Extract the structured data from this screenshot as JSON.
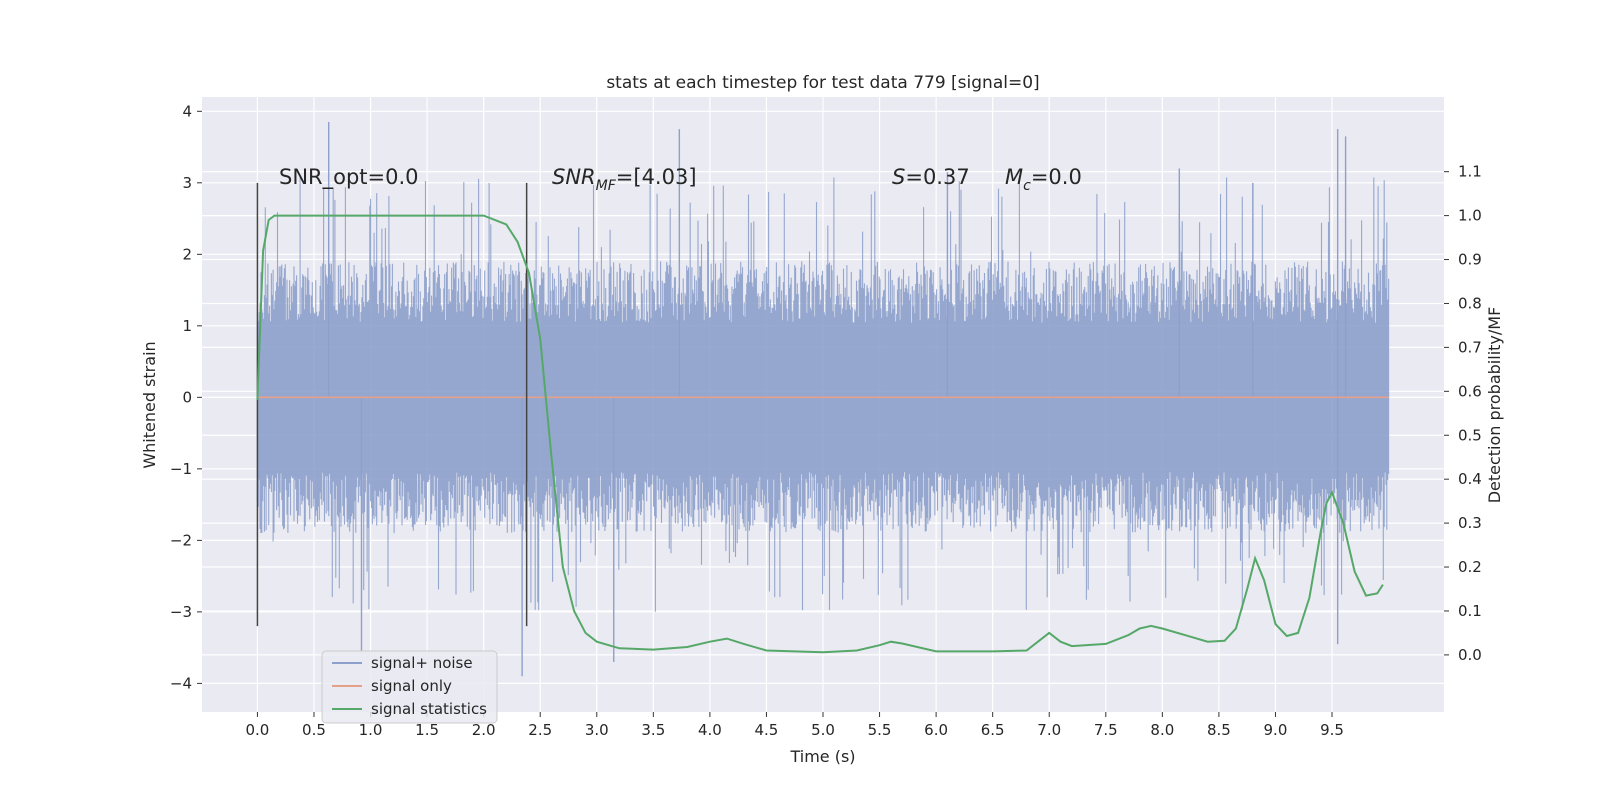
{
  "chart_data": {
    "type": "line",
    "title": "stats at each timestep for test data 779 [signal=0]",
    "xlabel": "Time (s)",
    "ylabel": "Whitened strain",
    "y2label": "Detection probability/MF",
    "xlim": [
      -0.49,
      10.49
    ],
    "ylim": [
      -4.4,
      4.2
    ],
    "y2lim": [
      -0.13,
      1.27
    ],
    "grid": true,
    "legend_position": "lower-left",
    "x_ticks": [
      "0.0",
      "0.5",
      "1.0",
      "1.5",
      "2.0",
      "2.5",
      "3.0",
      "3.5",
      "4.0",
      "4.5",
      "5.0",
      "5.5",
      "6.0",
      "6.5",
      "7.0",
      "7.5",
      "8.0",
      "8.5",
      "9.0",
      "9.5"
    ],
    "y_ticks": [
      "4",
      "3",
      "2",
      "1",
      "0",
      "−1",
      "−2",
      "−3",
      "−4"
    ],
    "y2_ticks": [
      "1.1",
      "1.0",
      "0.9",
      "0.8",
      "0.7",
      "0.6",
      "0.5",
      "0.4",
      "0.3",
      "0.2",
      "0.1",
      "0.0"
    ],
    "annotations": {
      "snr_opt": "SNR_opt=0.0",
      "snr_mf_main": "SNR",
      "snr_mf_sub": "MF",
      "snr_mf_value": "=[4.03]",
      "s_symbol": "S",
      "s_value": "=0.37",
      "mc_main": "M",
      "mc_sub": "c",
      "mc_value": "=0.0"
    },
    "markers": {
      "vertical_lines_x": [
        0.0,
        2.38
      ],
      "vertical_lines_y_range": [
        -3.2,
        3.0
      ]
    },
    "series": [
      {
        "name": "signal+ noise",
        "color": "#8da0cb",
        "x_range": [
          0.0,
          10.0
        ],
        "typical_range": [
          -1.9,
          1.9
        ],
        "peaks": [
          {
            "x": 0.63,
            "y": 3.85
          },
          {
            "x": 0.92,
            "y": -3.55
          },
          {
            "x": 2.34,
            "y": -3.9
          },
          {
            "x": 3.15,
            "y": -3.7
          },
          {
            "x": 3.73,
            "y": 3.75
          },
          {
            "x": 9.55,
            "y": 3.75
          },
          {
            "x": 9.55,
            "y": -3.45
          },
          {
            "x": 9.62,
            "y": 3.65
          },
          {
            "x": 6.1,
            "y": 3.15
          },
          {
            "x": 8.15,
            "y": 3.2
          },
          {
            "x": 8.8,
            "y": 3.0
          }
        ]
      },
      {
        "name": "signal only",
        "color": "#e5a08a",
        "x": [
          0.0,
          10.0
        ],
        "y": [
          0.0,
          0.0
        ]
      },
      {
        "name": "signal statistics",
        "color": "#55a868",
        "axis": "right",
        "x": [
          0.0,
          0.05,
          0.1,
          0.15,
          0.25,
          0.5,
          1.0,
          1.5,
          2.0,
          2.2,
          2.3,
          2.4,
          2.5,
          2.6,
          2.7,
          2.8,
          2.9,
          3.0,
          3.2,
          3.5,
          3.8,
          4.0,
          4.15,
          4.3,
          4.5,
          5.0,
          5.3,
          5.5,
          5.6,
          5.7,
          6.0,
          6.5,
          6.8,
          6.9,
          7.0,
          7.1,
          7.2,
          7.5,
          7.7,
          7.8,
          7.9,
          8.0,
          8.2,
          8.4,
          8.55,
          8.65,
          8.75,
          8.82,
          8.9,
          9.0,
          9.1,
          9.2,
          9.3,
          9.4,
          9.45,
          9.5,
          9.6,
          9.7,
          9.8,
          9.9,
          9.95
        ],
        "y": [
          0.58,
          0.92,
          0.99,
          1.0,
          1.0,
          1.0,
          1.0,
          1.0,
          1.0,
          0.98,
          0.94,
          0.87,
          0.72,
          0.45,
          0.2,
          0.1,
          0.05,
          0.03,
          0.015,
          0.012,
          0.018,
          0.03,
          0.037,
          0.025,
          0.01,
          0.006,
          0.01,
          0.022,
          0.03,
          0.026,
          0.008,
          0.008,
          0.01,
          0.03,
          0.05,
          0.03,
          0.02,
          0.025,
          0.045,
          0.06,
          0.066,
          0.06,
          0.045,
          0.03,
          0.032,
          0.06,
          0.15,
          0.22,
          0.17,
          0.07,
          0.043,
          0.05,
          0.13,
          0.28,
          0.345,
          0.37,
          0.3,
          0.19,
          0.135,
          0.14,
          0.16
        ]
      }
    ]
  }
}
